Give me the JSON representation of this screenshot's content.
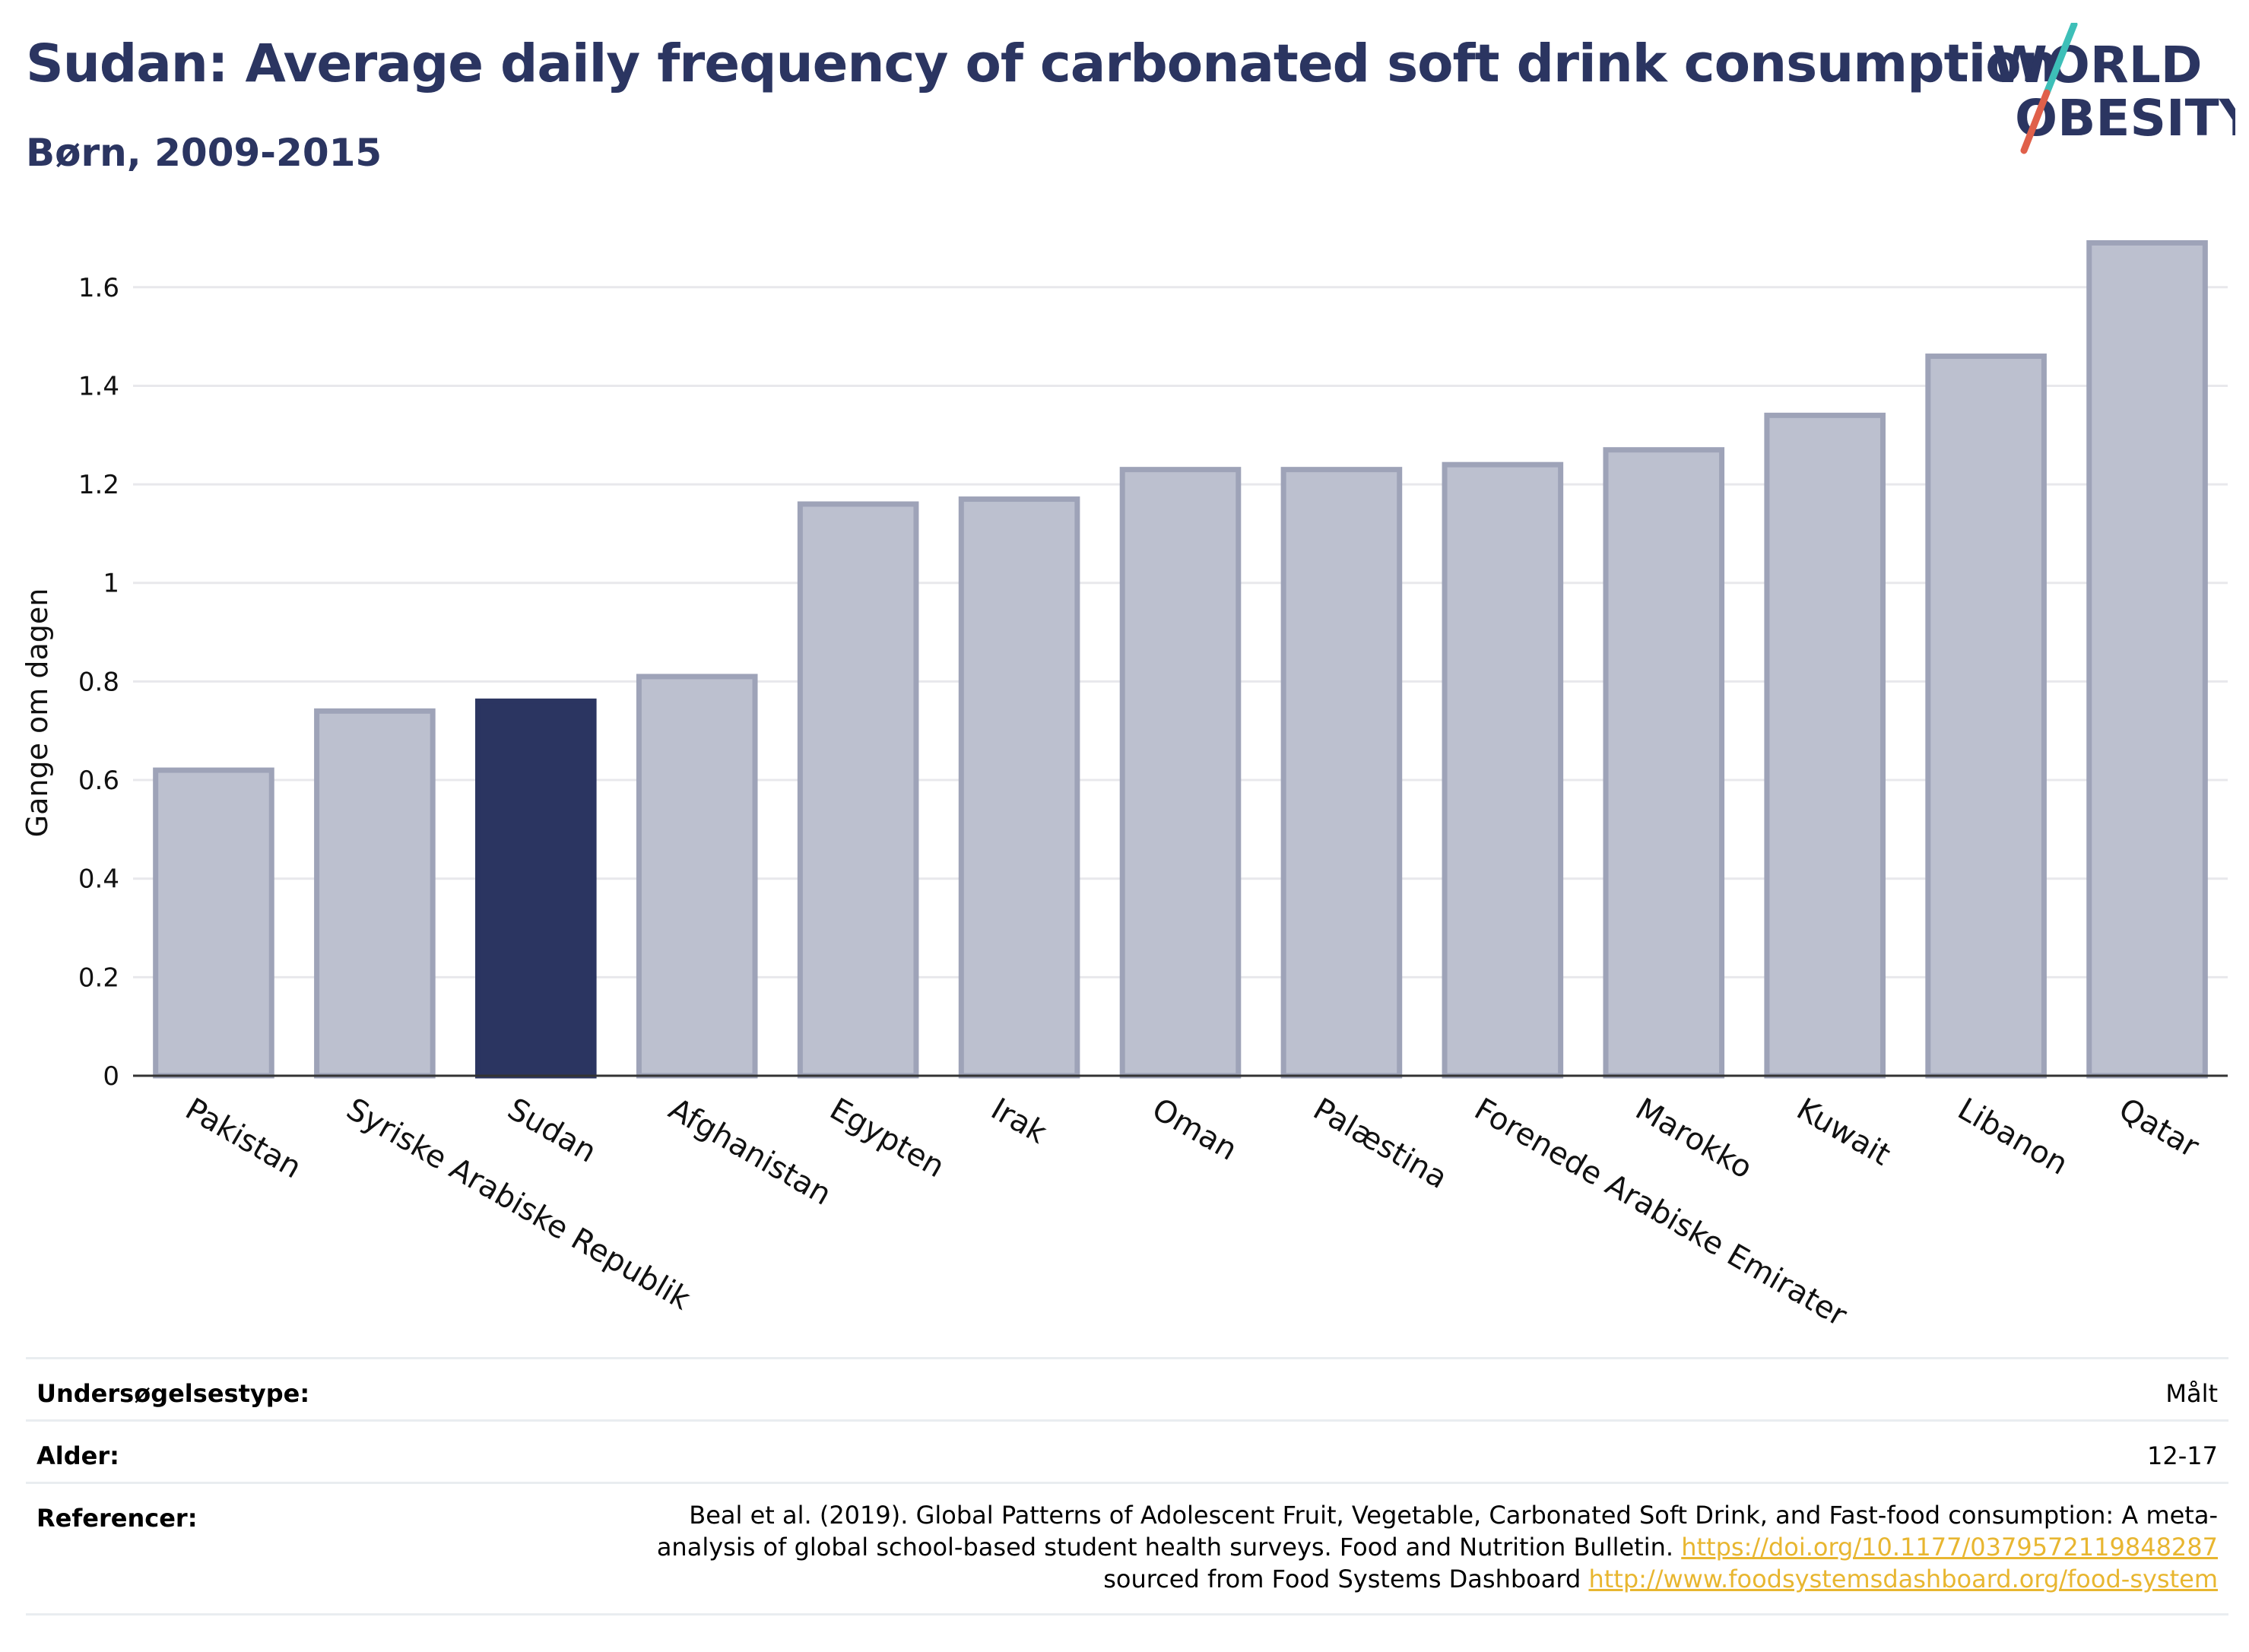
{
  "header": {
    "title": "Sudan: Average daily frequency of carbonated soft drink consumption",
    "subtitle": "Børn, 2009-2015"
  },
  "logo": {
    "line1": "WORLD",
    "line2": "OBESITY",
    "icon": "world-obesity-logo"
  },
  "colors": {
    "highlight": "#2b3561",
    "bar_fill": "#bcc0cf",
    "bar_stroke": "#9ea3b8",
    "grid": "#e8e8ec",
    "link": "#e8b630",
    "logo_teal": "#3dbfb8",
    "logo_red": "#e0604a"
  },
  "chart_data": {
    "type": "bar",
    "ylabel": "Gange om dagen",
    "xlabel": "",
    "ylim": [
      0,
      1.72
    ],
    "yticks": [
      0,
      0.2,
      0.4,
      0.6,
      0.8,
      1,
      1.2,
      1.4,
      1.6
    ],
    "ytick_labels": [
      "0",
      "0.2",
      "0.4",
      "0.6",
      "0.8",
      "1",
      "1.2",
      "1.4",
      "1.6"
    ],
    "grid": true,
    "highlight": "Sudan",
    "categories": [
      "Pakistan",
      "Syriske Arabiske Republik",
      "Sudan",
      "Afghanistan",
      "Egypten",
      "Irak",
      "Oman",
      "Palæstina",
      "Forenede Arabiske Emirater",
      "Marokko",
      "Kuwait",
      "Libanon",
      "Qatar"
    ],
    "values": [
      0.62,
      0.74,
      0.76,
      0.81,
      1.16,
      1.17,
      1.23,
      1.23,
      1.24,
      1.27,
      1.34,
      1.46,
      1.69
    ]
  },
  "meta": {
    "survey_type_label": "Undersøgelsestype:",
    "survey_type_value": "Målt",
    "age_label": "Alder:",
    "age_value": "12-17",
    "references_label": "Referencer:",
    "ref_text_1": "Beal et al. (2019). Global Patterns of Adolescent Fruit, Vegetable, Carbonated Soft Drink, and Fast-food consumption: A meta-analysis of global school-based student health surveys. Food and Nutrition Bulletin. ",
    "ref_link_1": "https://doi.org/10.1177/0379572119848287",
    "ref_text_2": " sourced from Food Systems Dashboard ",
    "ref_link_2": "http://www.foodsystemsdashboard.org/food-system"
  }
}
